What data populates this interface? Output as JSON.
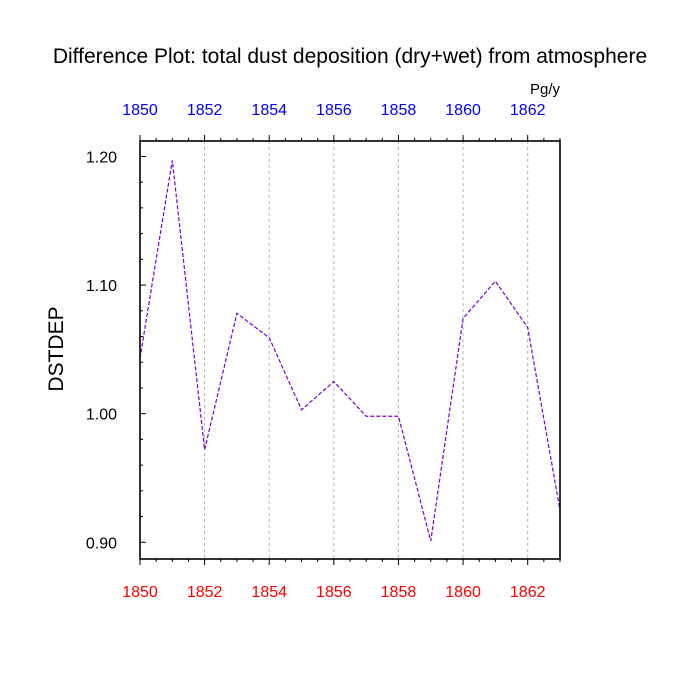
{
  "chart_data": {
    "type": "line",
    "title": "Difference Plot: total dust deposition (dry+wet) from atmosphere",
    "units": "Pg/y",
    "ylabel": "DSTDEP",
    "xlim": [
      1850,
      1863
    ],
    "ylim": [
      0.887,
      1.212
    ],
    "x_ticks": [
      1850,
      1852,
      1854,
      1856,
      1858,
      1860,
      1862
    ],
    "x_tick_labels": [
      "1850",
      "1852",
      "1854",
      "1856",
      "1858",
      "1860",
      "1862"
    ],
    "y_ticks": [
      0.9,
      1.0,
      1.1,
      1.2
    ],
    "y_tick_labels": [
      "0.90",
      "1.00",
      "1.10",
      "1.20"
    ],
    "grid": "vertical dotted at major x ticks",
    "colors": {
      "line": "#7a00d0",
      "bottom_tick_labels": "#ff0000",
      "top_tick_labels": "#0000ff",
      "grid": "#b4b4b4"
    },
    "series": [
      {
        "x": [
          1850,
          1851,
          1852,
          1853,
          1854,
          1855,
          1856,
          1857,
          1858,
          1859,
          1860,
          1861,
          1862,
          1863
        ],
        "values": [
          1.043,
          1.197,
          0.972,
          1.078,
          1.059,
          1.003,
          1.025,
          0.998,
          0.998,
          0.901,
          1.074,
          1.103,
          1.067,
          0.925
        ]
      }
    ]
  }
}
